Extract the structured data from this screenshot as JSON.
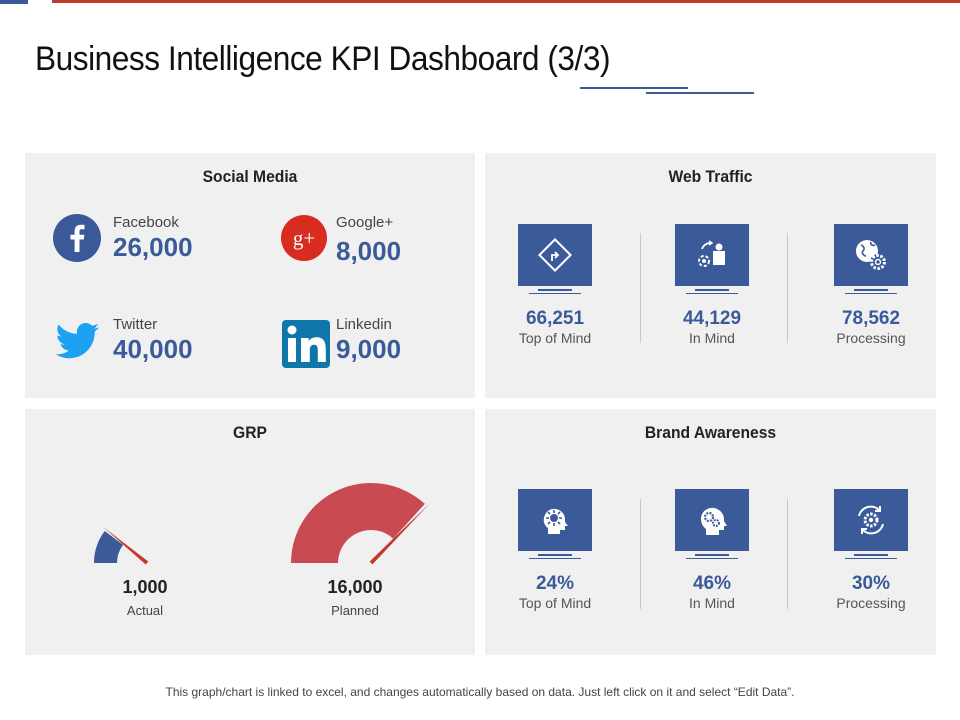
{
  "slide": {
    "title": "Business Intelligence KPI Dashboard (3/3)",
    "footnote": "This graph/chart is linked to excel, and changes automatically based on data. Just left click on it and select “Edit Data”."
  },
  "colors": {
    "accent": "#3a5a99",
    "red": "#c0392b",
    "panel": "#f0f0f0"
  },
  "social_media": {
    "title": "Social Media",
    "items": [
      {
        "name": "Facebook",
        "value": "26,000",
        "icon": "facebook-icon",
        "color": "#3b5998"
      },
      {
        "name": "Google+",
        "value": "8,000",
        "icon": "google-plus-icon",
        "color": "#d62d20"
      },
      {
        "name": "Twitter",
        "value": "40,000",
        "icon": "twitter-icon",
        "color": "#1da1f2"
      },
      {
        "name": "Linkedin",
        "value": "9,000",
        "icon": "linkedin-icon",
        "color": "#0e76a8"
      }
    ]
  },
  "web_traffic": {
    "title": "Web Traffic",
    "items": [
      {
        "value": "66,251",
        "label": "Top of Mind",
        "icon": "direction-sign-icon"
      },
      {
        "value": "44,129",
        "label": "In Mind",
        "icon": "user-process-icon"
      },
      {
        "value": "78,562",
        "label": "Processing",
        "icon": "globe-gear-icon"
      }
    ]
  },
  "grp": {
    "title": "GRP",
    "gauges": [
      {
        "value": "1,000",
        "label": "Actual",
        "fill_fraction": 0.0625,
        "color": "#3a5a99"
      },
      {
        "value": "16,000",
        "label": "Planned",
        "fill_fraction": 0.92,
        "color": "#c94a53"
      }
    ]
  },
  "brand_awareness": {
    "title": "Brand Awareness",
    "items": [
      {
        "value": "24%",
        "label": "Top of Mind",
        "icon": "idea-head-icon"
      },
      {
        "value": "46%",
        "label": "In Mind",
        "icon": "gear-head-icon"
      },
      {
        "value": "30%",
        "label": "Processing",
        "icon": "gear-cycle-icon"
      }
    ]
  }
}
